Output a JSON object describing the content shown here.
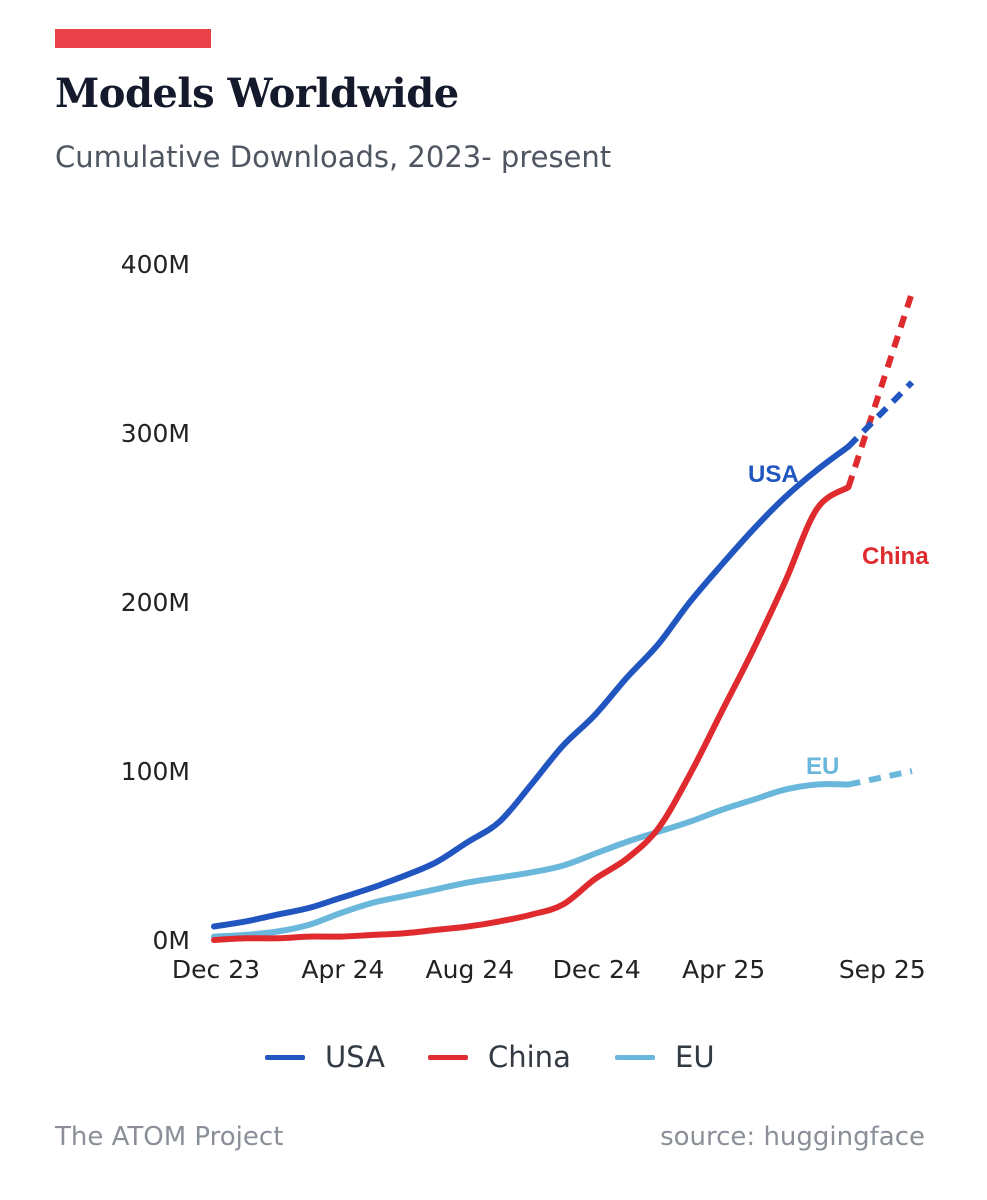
{
  "header": {
    "title": "Models Worldwide",
    "subtitle": "Cumulative Downloads, 2023- present",
    "accent_color": "#e8414a"
  },
  "footer": {
    "left": "The ATOM Project",
    "right": "source: huggingface"
  },
  "chart_data": {
    "type": "line",
    "title": "Models Worldwide",
    "subtitle": "Cumulative Downloads, 2023- present",
    "x_tick_labels": [
      "Dec 23",
      "Apr 24",
      "Aug 24",
      "Dec 24",
      "Apr 25",
      "Sep 25"
    ],
    "x_tick_months": [
      0,
      4,
      8,
      12,
      16,
      21
    ],
    "y_tick_labels": [
      "0M",
      "100M",
      "200M",
      "300M",
      "400M"
    ],
    "y_tick_values": [
      0,
      100,
      200,
      300,
      400
    ],
    "x_unit": "months since Dec 23",
    "y_unit": "million downloads",
    "ylim": [
      0,
      400
    ],
    "grid": false,
    "legend_position": "bottom",
    "series": [
      {
        "name": "USA",
        "color": "#2155c0",
        "label": "USA",
        "x": [
          0,
          1,
          2,
          3,
          4,
          5,
          6,
          7,
          8,
          9,
          10,
          11,
          12,
          13,
          14,
          15,
          16,
          17,
          18,
          19,
          20
        ],
        "values": [
          8,
          11,
          15,
          19,
          25,
          31,
          38,
          46,
          58,
          70,
          92,
          115,
          133,
          155,
          175,
          200,
          222,
          243,
          262,
          278,
          292
        ],
        "projected_x": [
          20,
          22
        ],
        "projected_values": [
          292,
          330
        ]
      },
      {
        "name": "China",
        "color": "#df2b2e",
        "label": "China",
        "x": [
          0,
          1,
          2,
          3,
          4,
          5,
          6,
          7,
          8,
          9,
          10,
          11,
          12,
          13,
          14,
          15,
          16,
          17,
          18,
          19,
          20
        ],
        "values": [
          0,
          1,
          1,
          2,
          2,
          3,
          4,
          6,
          8,
          11,
          15,
          21,
          36,
          48,
          66,
          98,
          135,
          172,
          212,
          255,
          268
        ],
        "projected_x": [
          20,
          22
        ],
        "projected_values": [
          268,
          383
        ]
      },
      {
        "name": "EU",
        "color": "#6ab7dc",
        "label": "EU",
        "x": [
          0,
          1,
          2,
          3,
          4,
          5,
          6,
          7,
          8,
          9,
          10,
          11,
          12,
          13,
          14,
          15,
          16,
          17,
          18,
          19,
          20
        ],
        "values": [
          2,
          3,
          5,
          9,
          16,
          22,
          26,
          30,
          34,
          37,
          40,
          44,
          51,
          58,
          64,
          70,
          77,
          83,
          89,
          92,
          92
        ],
        "projected_x": [
          20,
          22
        ],
        "projected_values": [
          92,
          100
        ]
      }
    ]
  }
}
